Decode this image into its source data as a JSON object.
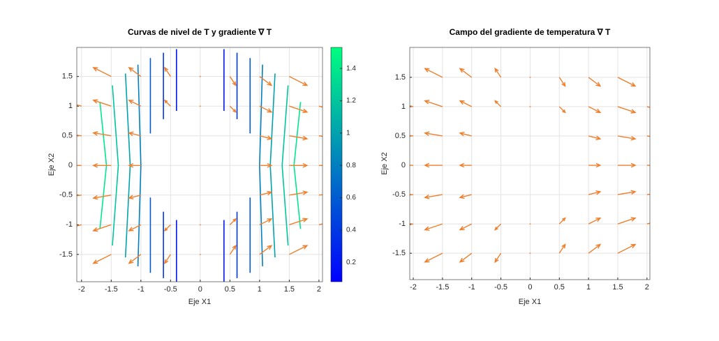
{
  "chart_data": [
    {
      "type": "contour",
      "title": "Curvas de nivel de T y gradiente ∇ T",
      "xlabel": "Eje X1",
      "ylabel": "Eje X2",
      "xlim": [
        -2.08,
        2.06
      ],
      "ylim": [
        -1.96,
        1.99
      ],
      "xticks": [
        -2,
        -1.5,
        -1,
        -0.5,
        0,
        0.5,
        1,
        1.5,
        2
      ],
      "yticks": [
        -1.5,
        -1,
        -0.5,
        0,
        0.5,
        1,
        1.5
      ],
      "grid": true,
      "colormap": [
        "#0000ff",
        "#00ff80"
      ],
      "clim": [
        0.08,
        1.53
      ],
      "colorbar_ticks": [
        0.2,
        0.4,
        0.6,
        0.8,
        1,
        1.2,
        1.4
      ],
      "contours": [
        {
          "level": 0.2,
          "x": [
            0.4,
            0.4,
            null,
            0.4,
            0.4,
            null,
            -0.4,
            -0.4,
            null,
            -0.4,
            -0.4
          ],
          "y": [
            0.92,
            1.96,
            null,
            -0.92,
            -1.96,
            null,
            0.92,
            1.96,
            null,
            -0.92,
            -1.96
          ]
        },
        {
          "level": 0.4,
          "x": [
            0.62,
            0.62,
            null,
            0.62,
            0.62,
            null,
            -0.62,
            -0.62,
            null,
            -0.62,
            -0.62
          ],
          "y": [
            0.78,
            1.9,
            null,
            -0.78,
            -1.9,
            null,
            0.78,
            1.9,
            null,
            -0.78,
            -1.9
          ]
        },
        {
          "level": 0.6,
          "x": [
            0.84,
            0.84,
            null,
            0.84,
            0.84,
            null,
            -0.84,
            -0.84,
            null,
            -0.84,
            -0.84
          ],
          "y": [
            0.54,
            1.81,
            null,
            -0.54,
            -1.81,
            null,
            0.54,
            1.81,
            null,
            -0.54,
            -1.81
          ]
        },
        {
          "level": 0.8,
          "x": [
            1.05,
            1.0,
            1.05,
            null,
            -1.05,
            -1.0,
            -1.05
          ],
          "y": [
            1.7,
            0,
            -1.7,
            null,
            1.7,
            0,
            -1.7
          ]
        },
        {
          "level": 1.0,
          "x": [
            1.26,
            1.18,
            1.26,
            null,
            -1.26,
            -1.18,
            -1.26
          ],
          "y": [
            1.55,
            0,
            -1.55,
            null,
            1.55,
            0,
            -1.55
          ]
        },
        {
          "level": 1.2,
          "x": [
            1.48,
            1.38,
            1.48,
            null,
            -1.48,
            -1.38,
            -1.48
          ],
          "y": [
            1.35,
            0,
            -1.35,
            null,
            1.35,
            0,
            -1.35
          ]
        },
        {
          "level": 1.4,
          "x": [
            1.69,
            1.58,
            1.69,
            null,
            -1.69,
            -1.58,
            -1.69
          ],
          "y": [
            1.07,
            0,
            -1.07,
            null,
            1.07,
            0,
            -1.07
          ]
        }
      ],
      "quiver": {
        "color": "#ee7f2d",
        "x": [
          -1.5,
          -1,
          -0.5,
          0,
          0.5,
          1,
          1.5,
          -2,
          -1.5,
          -1,
          -0.5,
          0,
          0.5,
          1,
          1.5,
          2,
          -2,
          -1.5,
          -1,
          1,
          1.5,
          2,
          -2,
          -1.5,
          -1,
          1,
          1.5,
          2,
          -2,
          -1.5,
          -1,
          1,
          1.5,
          2,
          -2,
          -1.5,
          -1,
          -0.5,
          0,
          0.5,
          1,
          1.5,
          2,
          -1.5,
          -1,
          -0.5,
          0,
          0.5,
          1,
          1.5
        ],
        "y": [
          1.5,
          1.5,
          1.5,
          1.5,
          1.5,
          1.5,
          1.5,
          1,
          1,
          1,
          1,
          1,
          1,
          1,
          1,
          1,
          0.5,
          0.5,
          0.5,
          0.5,
          0.5,
          0.5,
          0,
          0,
          0,
          0,
          0,
          0,
          -0.5,
          -0.5,
          -0.5,
          -0.5,
          -0.5,
          -0.5,
          -1,
          -1,
          -1,
          -1,
          -1,
          -1,
          -1,
          -1,
          -1,
          -1.5,
          -1.5,
          -1.5,
          -1.5,
          -1.5,
          -1.5,
          -1.5
        ],
        "u": [
          -0.3,
          -0.2,
          -0.1,
          0,
          0.1,
          0.2,
          0.3,
          -0.4,
          -0.3,
          -0.2,
          -0.1,
          0,
          0.1,
          0.2,
          0.3,
          0.4,
          -0.4,
          -0.3,
          -0.2,
          0.2,
          0.3,
          0.4,
          -0.4,
          -0.3,
          -0.2,
          0.2,
          0.3,
          0.4,
          -0.4,
          -0.3,
          -0.2,
          0.2,
          0.3,
          0.4,
          -0.4,
          -0.3,
          -0.2,
          -0.1,
          0,
          0.1,
          0.2,
          0.3,
          0.4,
          -0.3,
          -0.2,
          -0.1,
          0,
          0.1,
          0.2,
          0.3
        ],
        "v": [
          0.15,
          0.15,
          0.15,
          0,
          -0.15,
          -0.15,
          -0.15,
          0.1,
          0.1,
          0.1,
          0.1,
          0,
          -0.1,
          -0.1,
          -0.1,
          -0.1,
          0.05,
          0.05,
          0.05,
          -0.05,
          -0.05,
          -0.05,
          0,
          0,
          0,
          0,
          0,
          0,
          -0.05,
          -0.05,
          -0.05,
          0.05,
          0.05,
          0.05,
          -0.1,
          -0.1,
          -0.1,
          -0.1,
          0,
          0.1,
          0.1,
          0.1,
          0.1,
          -0.15,
          -0.15,
          -0.15,
          0,
          0.15,
          0.15,
          0.15
        ]
      }
    },
    {
      "type": "quiver",
      "title": "Campo del gradiente de temperatura ∇ T",
      "xlabel": "Eje X1",
      "ylabel": "Eje X2",
      "xlim": [
        -2.06,
        2.05
      ],
      "ylim": [
        -1.95,
        2.01
      ],
      "xticks": [
        -2,
        -1.5,
        -1,
        -0.5,
        0,
        0.5,
        1,
        1.5,
        2
      ],
      "yticks": [
        -1.5,
        -1,
        -0.5,
        0,
        0.5,
        1,
        1.5
      ],
      "grid": true,
      "quiver": {
        "color": "#ee7f2d",
        "x": [
          -1.5,
          -1,
          -0.5,
          0,
          0.5,
          1,
          1.5,
          -2,
          -1.5,
          -1,
          -0.5,
          0,
          0.5,
          1,
          1.5,
          2,
          -2,
          -1.5,
          -1,
          1,
          1.5,
          2,
          -2,
          -1.5,
          -1,
          1,
          1.5,
          2,
          -2,
          -1.5,
          -1,
          1,
          1.5,
          2,
          -2,
          -1.5,
          -1,
          -0.5,
          0,
          0.5,
          1,
          1.5,
          2,
          -1.5,
          -1,
          -0.5,
          0,
          0.5,
          1,
          1.5
        ],
        "y": [
          1.5,
          1.5,
          1.5,
          1.5,
          1.5,
          1.5,
          1.5,
          1,
          1,
          1,
          1,
          1,
          1,
          1,
          1,
          1,
          0.5,
          0.5,
          0.5,
          0.5,
          0.5,
          0.5,
          0,
          0,
          0,
          0,
          0,
          0,
          -0.5,
          -0.5,
          -0.5,
          -0.5,
          -0.5,
          -0.5,
          -1,
          -1,
          -1,
          -1,
          -1,
          -1,
          -1,
          -1,
          -1,
          -1.5,
          -1.5,
          -1.5,
          -1.5,
          -1.5,
          -1.5,
          -1.5
        ],
        "u": [
          -0.3,
          -0.2,
          -0.1,
          0,
          0.1,
          0.2,
          0.3,
          -0.4,
          -0.3,
          -0.2,
          -0.1,
          0,
          0.1,
          0.2,
          0.3,
          0.4,
          -0.4,
          -0.3,
          -0.2,
          0.2,
          0.3,
          0.4,
          -0.4,
          -0.3,
          -0.2,
          0.2,
          0.3,
          0.4,
          -0.4,
          -0.3,
          -0.2,
          0.2,
          0.3,
          0.4,
          -0.4,
          -0.3,
          -0.2,
          -0.1,
          0,
          0.1,
          0.2,
          0.3,
          0.4,
          -0.3,
          -0.2,
          -0.1,
          0,
          0.1,
          0.2,
          0.3
        ],
        "v": [
          0.15,
          0.15,
          0.15,
          0,
          -0.15,
          -0.15,
          -0.15,
          0.1,
          0.1,
          0.1,
          0.1,
          0,
          -0.1,
          -0.1,
          -0.1,
          -0.1,
          0.05,
          0.05,
          0.05,
          -0.05,
          -0.05,
          -0.05,
          0,
          0,
          0,
          0,
          0,
          0,
          -0.05,
          -0.05,
          -0.05,
          0.05,
          0.05,
          0.05,
          -0.1,
          -0.1,
          -0.1,
          -0.1,
          0,
          0.1,
          0.1,
          0.1,
          0.1,
          -0.15,
          -0.15,
          -0.15,
          0,
          0.15,
          0.15,
          0.15
        ]
      }
    }
  ]
}
